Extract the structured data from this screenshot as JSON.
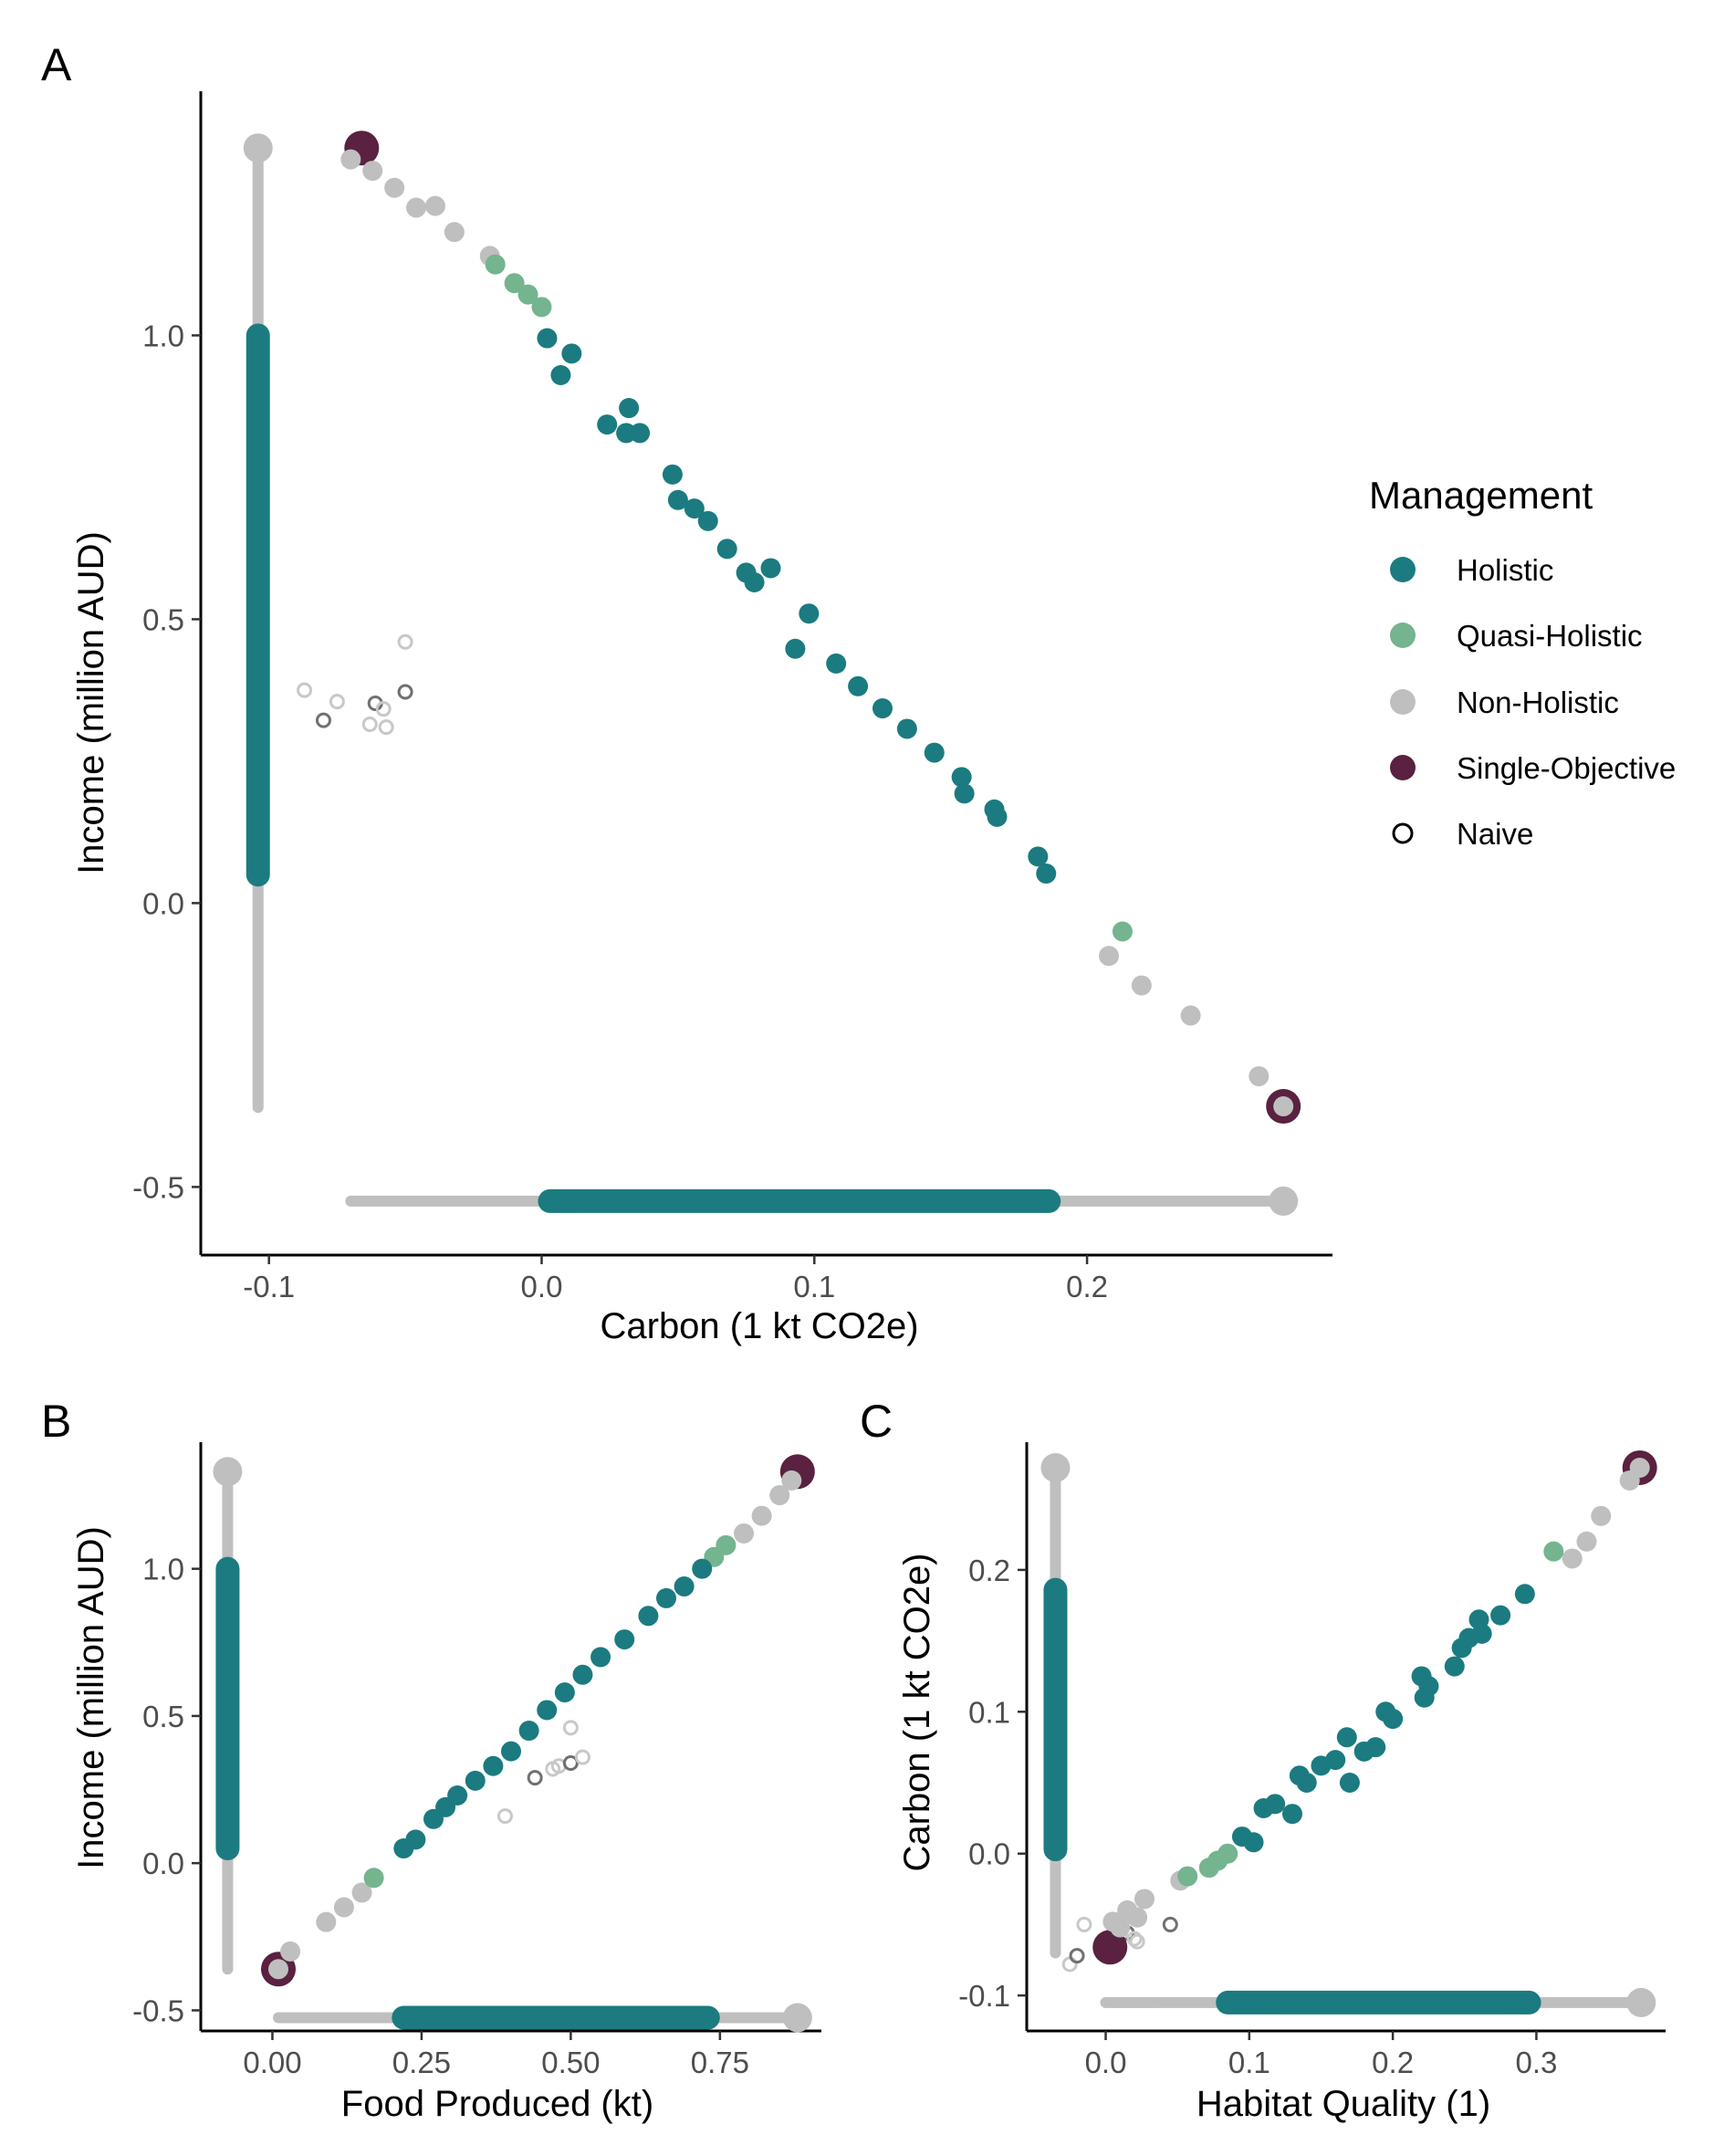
{
  "colors": {
    "holistic": "#1b7b80",
    "quasi": "#74b48f",
    "non": "#bfbfbf",
    "single": "#5a2140",
    "naive_light": "#c8c8c8",
    "naive_dark": "#707070"
  },
  "legend": {
    "title": "Management",
    "items": [
      {
        "key": "holistic",
        "label": "Holistic"
      },
      {
        "key": "quasi",
        "label": "Quasi-Holistic"
      },
      {
        "key": "non",
        "label": "Non-Holistic"
      },
      {
        "key": "single",
        "label": "Single-Objective"
      },
      {
        "key": "naive",
        "label": "Naive"
      }
    ]
  },
  "chart_data": [
    {
      "panel": "A",
      "type": "scatter",
      "xlabel": "Carbon (1 kt CO2e)",
      "ylabel": "Income (million AUD)",
      "xlim": [
        -0.125,
        0.29
      ],
      "ylim": [
        -0.62,
        1.43
      ],
      "xticks": [
        -0.1,
        0.0,
        0.1,
        0.2
      ],
      "xtick_labels": [
        "-0.1",
        "0.0",
        "0.1",
        "0.2"
      ],
      "yticks": [
        -0.5,
        0.0,
        0.5,
        1.0
      ],
      "ytick_labels": [
        "-0.5",
        "0.0",
        "0.5",
        "1.0"
      ],
      "range_bars": {
        "x_axis": {
          "at_y": -0.525,
          "non_range": [
            -0.07,
            0.272
          ],
          "holistic_range": [
            0.003,
            0.186
          ]
        },
        "y_axis": {
          "at_x": -0.104,
          "non_range": [
            -0.36,
            1.33
          ],
          "holistic_range": [
            0.05,
            1.0
          ]
        }
      },
      "series": [
        {
          "name": "Holistic",
          "key": "holistic",
          "points": [
            [
              0.002,
              0.995
            ],
            [
              0.011,
              0.968
            ],
            [
              0.007,
              0.93
            ],
            [
              0.024,
              0.843
            ],
            [
              0.032,
              0.872
            ],
            [
              0.031,
              0.828
            ],
            [
              0.036,
              0.828
            ],
            [
              0.048,
              0.755
            ],
            [
              0.05,
              0.71
            ],
            [
              0.056,
              0.695
            ],
            [
              0.061,
              0.673
            ],
            [
              0.068,
              0.624
            ],
            [
              0.075,
              0.582
            ],
            [
              0.078,
              0.565
            ],
            [
              0.084,
              0.59
            ],
            [
              0.093,
              0.448
            ],
            [
              0.098,
              0.51
            ],
            [
              0.108,
              0.422
            ],
            [
              0.116,
              0.382
            ],
            [
              0.125,
              0.343
            ],
            [
              0.134,
              0.307
            ],
            [
              0.144,
              0.265
            ],
            [
              0.154,
              0.222
            ],
            [
              0.155,
              0.193
            ],
            [
              0.166,
              0.165
            ],
            [
              0.167,
              0.152
            ],
            [
              0.182,
              0.082
            ],
            [
              0.185,
              0.052
            ]
          ]
        },
        {
          "name": "Quasi-Holistic",
          "key": "quasi",
          "points": [
            [
              -0.017,
              1.125
            ],
            [
              -0.01,
              1.092
            ],
            [
              -0.005,
              1.072
            ],
            [
              0.0,
              1.05
            ],
            [
              0.213,
              -0.05
            ]
          ]
        },
        {
          "name": "Non-Holistic",
          "key": "non",
          "points": [
            [
              -0.07,
              1.31
            ],
            [
              -0.062,
              1.29
            ],
            [
              -0.054,
              1.26
            ],
            [
              -0.046,
              1.225
            ],
            [
              -0.039,
              1.228
            ],
            [
              -0.032,
              1.182
            ],
            [
              -0.019,
              1.14
            ],
            [
              0.208,
              -0.093
            ],
            [
              0.22,
              -0.145
            ],
            [
              0.238,
              -0.198
            ],
            [
              0.263,
              -0.305
            ],
            [
              0.272,
              -0.358
            ]
          ]
        },
        {
          "name": "Single-Objective",
          "key": "single",
          "points": [
            [
              -0.066,
              1.33
            ],
            [
              0.272,
              -0.358
            ]
          ]
        },
        {
          "name": "Naive",
          "key": "naive",
          "points": [
            [
              -0.087,
              0.375
            ],
            [
              -0.08,
              0.322
            ],
            [
              -0.075,
              0.355
            ],
            [
              -0.063,
              0.315
            ],
            [
              -0.061,
              0.352
            ],
            [
              -0.058,
              0.342
            ],
            [
              -0.057,
              0.31
            ],
            [
              -0.05,
              0.372
            ],
            [
              -0.05,
              0.46
            ]
          ]
        }
      ]
    },
    {
      "panel": "B",
      "type": "scatter",
      "xlabel": "Food Produced (kt)",
      "ylabel": "Income (million AUD)",
      "xlim": [
        -0.12,
        0.92
      ],
      "ylim": [
        -0.57,
        1.43
      ],
      "xticks": [
        0.0,
        0.25,
        0.5,
        0.75
      ],
      "xtick_labels": [
        "0.00",
        "0.25",
        "0.50",
        "0.75"
      ],
      "yticks": [
        -0.5,
        0.0,
        0.5,
        1.0
      ],
      "ytick_labels": [
        "-0.5",
        "0.0",
        "0.5",
        "1.0"
      ],
      "range_bars": {
        "x_axis": {
          "at_y": -0.525,
          "non_range": [
            0.01,
            0.88
          ],
          "holistic_range": [
            0.22,
            0.73
          ]
        },
        "y_axis": {
          "at_x": -0.075,
          "non_range": [
            -0.36,
            1.33
          ],
          "holistic_range": [
            0.05,
            1.0
          ]
        }
      },
      "series": [
        {
          "name": "Holistic",
          "key": "holistic",
          "points": [
            [
              0.22,
              0.05
            ],
            [
              0.24,
              0.08
            ],
            [
              0.27,
              0.15
            ],
            [
              0.29,
              0.19
            ],
            [
              0.31,
              0.23
            ],
            [
              0.34,
              0.28
            ],
            [
              0.37,
              0.33
            ],
            [
              0.4,
              0.38
            ],
            [
              0.43,
              0.45
            ],
            [
              0.46,
              0.52
            ],
            [
              0.49,
              0.58
            ],
            [
              0.52,
              0.64
            ],
            [
              0.55,
              0.7
            ],
            [
              0.59,
              0.76
            ],
            [
              0.63,
              0.84
            ],
            [
              0.66,
              0.9
            ],
            [
              0.69,
              0.94
            ],
            [
              0.72,
              1.0
            ]
          ]
        },
        {
          "name": "Quasi-Holistic",
          "key": "quasi",
          "points": [
            [
              0.17,
              -0.05
            ],
            [
              0.74,
              1.04
            ],
            [
              0.76,
              1.08
            ]
          ]
        },
        {
          "name": "Non-Holistic",
          "key": "non",
          "points": [
            [
              0.01,
              -0.36
            ],
            [
              0.03,
              -0.3
            ],
            [
              0.09,
              -0.2
            ],
            [
              0.12,
              -0.15
            ],
            [
              0.15,
              -0.1
            ],
            [
              0.79,
              1.12
            ],
            [
              0.82,
              1.18
            ],
            [
              0.85,
              1.25
            ],
            [
              0.87,
              1.3
            ]
          ]
        },
        {
          "name": "Single-Objective",
          "key": "single",
          "points": [
            [
              0.01,
              -0.36
            ],
            [
              0.88,
              1.33
            ]
          ]
        },
        {
          "name": "Naive",
          "key": "naive",
          "points": [
            [
              0.39,
              0.16
            ],
            [
              0.44,
              0.29
            ],
            [
              0.47,
              0.32
            ],
            [
              0.48,
              0.33
            ],
            [
              0.5,
              0.34
            ],
            [
              0.5,
              0.46
            ],
            [
              0.52,
              0.36
            ]
          ]
        }
      ]
    },
    {
      "panel": "C",
      "type": "scatter",
      "xlabel": "Habitat Quality (1)",
      "ylabel": "Carbon (1 kt CO2e)",
      "xlim": [
        -0.055,
        0.39
      ],
      "ylim": [
        -0.125,
        0.29
      ],
      "xticks": [
        0.0,
        0.1,
        0.2,
        0.3
      ],
      "xtick_labels": [
        "0.0",
        "0.1",
        "0.2",
        "0.3"
      ],
      "yticks": [
        -0.1,
        0.0,
        0.1,
        0.2
      ],
      "ytick_labels": [
        "-0.1",
        "0.0",
        "0.1",
        "0.2"
      ],
      "range_bars": {
        "x_axis": {
          "at_y": -0.105,
          "non_range": [
            0.0,
            0.373
          ],
          "holistic_range": [
            0.085,
            0.295
          ]
        },
        "y_axis": {
          "at_x": -0.035,
          "non_range": [
            -0.07,
            0.272
          ],
          "holistic_range": [
            0.003,
            0.186
          ]
        },
        "_": null
      },
      "series": [
        {
          "name": "Holistic",
          "key": "holistic",
          "points": [
            [
              0.095,
              0.012
            ],
            [
              0.103,
              0.008
            ],
            [
              0.11,
              0.032
            ],
            [
              0.118,
              0.035
            ],
            [
              0.13,
              0.028
            ],
            [
              0.135,
              0.055
            ],
            [
              0.14,
              0.05
            ],
            [
              0.15,
              0.062
            ],
            [
              0.16,
              0.066
            ],
            [
              0.168,
              0.082
            ],
            [
              0.17,
              0.05
            ],
            [
              0.18,
              0.072
            ],
            [
              0.188,
              0.075
            ],
            [
              0.195,
              0.1
            ],
            [
              0.2,
              0.095
            ],
            [
              0.22,
              0.125
            ],
            [
              0.222,
              0.11
            ],
            [
              0.225,
              0.118
            ],
            [
              0.243,
              0.132
            ],
            [
              0.248,
              0.145
            ],
            [
              0.253,
              0.152
            ],
            [
              0.26,
              0.165
            ],
            [
              0.262,
              0.155
            ],
            [
              0.275,
              0.168
            ],
            [
              0.292,
              0.183
            ]
          ]
        },
        {
          "name": "Quasi-Holistic",
          "key": "quasi",
          "points": [
            [
              0.057,
              -0.016
            ],
            [
              0.072,
              -0.01
            ],
            [
              0.078,
              -0.005
            ],
            [
              0.085,
              -0.0
            ],
            [
              0.312,
              0.213
            ]
          ]
        },
        {
          "name": "Non-Holistic",
          "key": "non",
          "points": [
            [
              0.005,
              -0.048
            ],
            [
              0.01,
              -0.052
            ],
            [
              0.015,
              -0.04
            ],
            [
              0.022,
              -0.045
            ],
            [
              0.027,
              -0.032
            ],
            [
              0.052,
              -0.019
            ],
            [
              0.325,
              0.208
            ],
            [
              0.335,
              0.22
            ],
            [
              0.345,
              0.238
            ],
            [
              0.365,
              0.263
            ],
            [
              0.372,
              0.272
            ]
          ]
        },
        {
          "name": "Single-Objective",
          "key": "single",
          "points": [
            [
              0.003,
              -0.066
            ],
            [
              0.372,
              0.272
            ]
          ]
        },
        {
          "name": "Naive",
          "key": "naive",
          "points": [
            [
              -0.025,
              -0.078
            ],
            [
              -0.02,
              -0.072
            ],
            [
              -0.015,
              -0.05
            ],
            [
              0.01,
              -0.058
            ],
            [
              0.015,
              -0.056
            ],
            [
              0.02,
              -0.06
            ],
            [
              0.022,
              -0.062
            ],
            [
              0.045,
              -0.05
            ]
          ]
        }
      ]
    }
  ],
  "panels": [
    {
      "letter": "A"
    },
    {
      "letter": "B"
    },
    {
      "letter": "C"
    }
  ]
}
